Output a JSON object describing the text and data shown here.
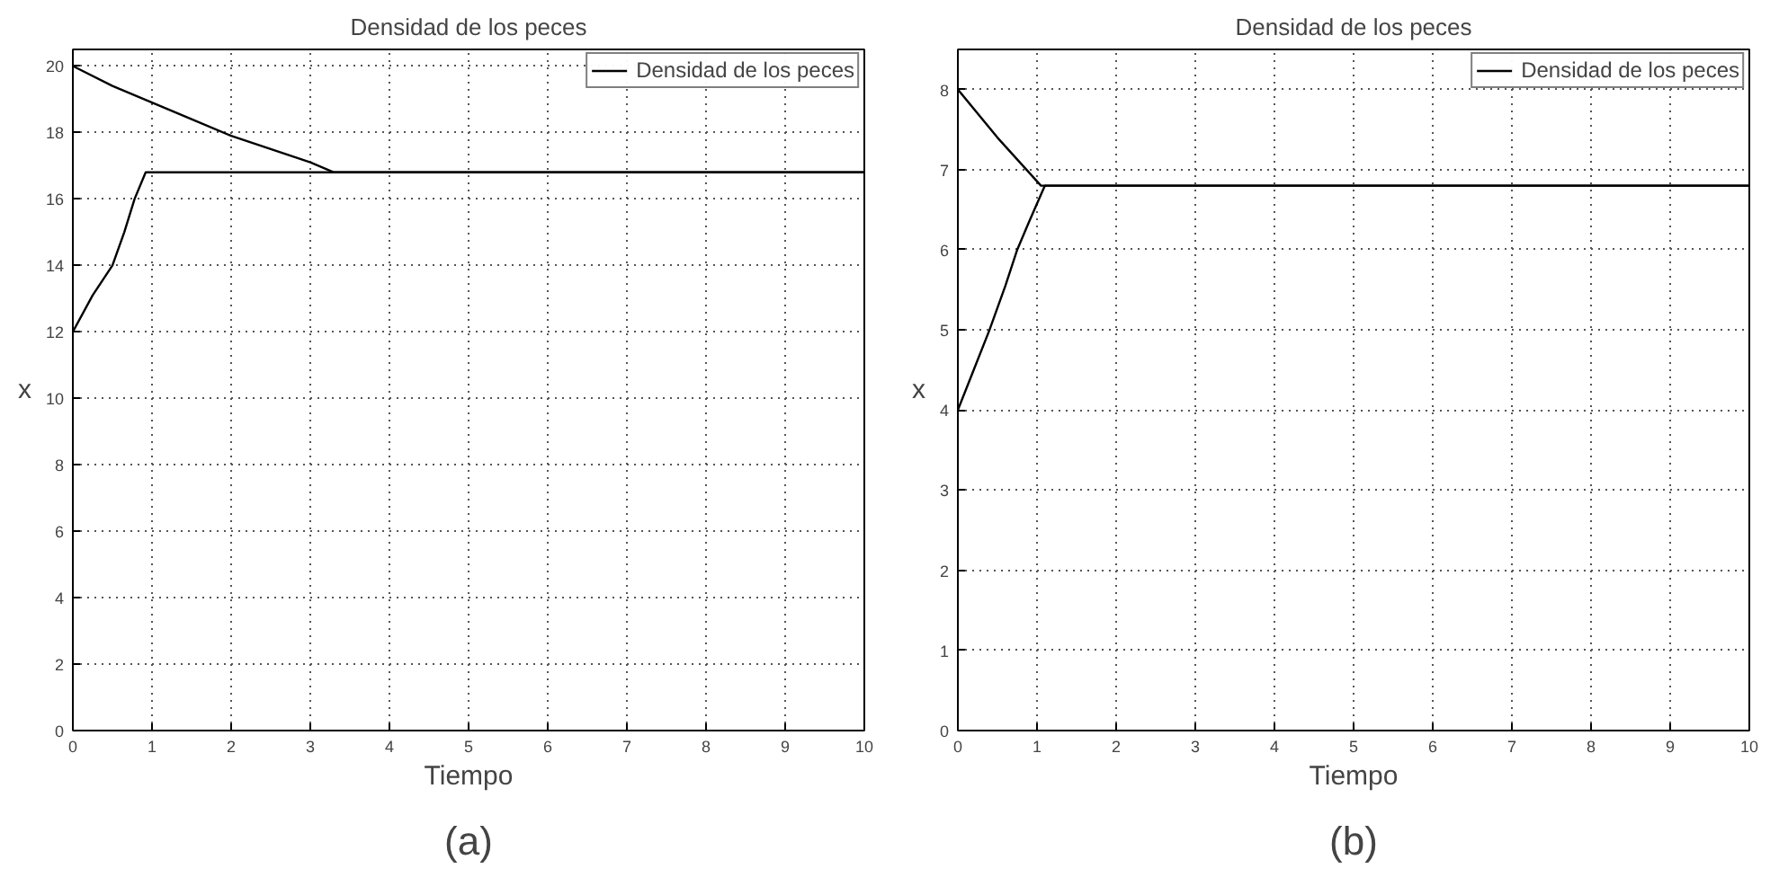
{
  "chart_data": [
    {
      "type": "line",
      "title": "Densidad de los peces",
      "xlabel": "Tiempo",
      "ylabel": "x",
      "annotations": [
        "(a)"
      ],
      "xlim": [
        0,
        10
      ],
      "ylim": [
        0,
        20.5
      ],
      "xticks": [
        0,
        1,
        2,
        3,
        4,
        5,
        6,
        7,
        8,
        9,
        10
      ],
      "yticks": [
        0,
        2,
        4,
        6,
        8,
        10,
        12,
        14,
        16,
        18,
        20
      ],
      "grid": true,
      "legend": "top right",
      "line_style": "solid",
      "series": [
        {
          "name": "Densidad de los peces",
          "color": "#000000",
          "x": [
            0,
            0.5,
            1,
            1.5,
            2,
            2.5,
            3,
            3.3,
            4,
            5,
            6,
            7,
            8,
            9,
            10
          ],
          "values": [
            20,
            19.4,
            18.9,
            18.4,
            17.9,
            17.5,
            17.1,
            16.8,
            16.8,
            16.8,
            16.8,
            16.8,
            16.8,
            16.8,
            16.8
          ]
        },
        {
          "color": "#000000",
          "x": [
            0,
            0.25,
            0.5,
            0.65,
            0.78,
            0.92,
            2,
            4,
            6,
            8,
            10
          ],
          "values": [
            12,
            13.1,
            14,
            15,
            16,
            16.8,
            16.8,
            16.8,
            16.8,
            16.8,
            16.8
          ]
        }
      ]
    },
    {
      "type": "line",
      "title": "Densidad de los peces",
      "xlabel": "Tiempo",
      "ylabel": "x",
      "annotations": [
        "(b)"
      ],
      "xlim": [
        0,
        10
      ],
      "ylim": [
        0,
        8.5
      ],
      "xticks": [
        0,
        1,
        2,
        3,
        4,
        5,
        6,
        7,
        8,
        9,
        10
      ],
      "yticks": [
        0,
        1,
        2,
        3,
        4,
        5,
        6,
        7,
        8
      ],
      "grid": true,
      "legend": "top right",
      "line_style": "solid",
      "series": [
        {
          "name": "Densidad de los peces",
          "color": "#000000",
          "x": [
            0,
            0.5,
            1.05,
            2,
            4,
            6,
            8,
            10
          ],
          "values": [
            8,
            7.4,
            6.8,
            6.8,
            6.8,
            6.8,
            6.8,
            6.8
          ]
        },
        {
          "color": "#000000",
          "x": [
            0,
            0.2,
            0.4,
            0.6,
            0.75,
            0.9,
            1.1,
            2,
            4,
            6,
            8,
            10
          ],
          "values": [
            4,
            4.5,
            5,
            5.55,
            6,
            6.35,
            6.8,
            6.8,
            6.8,
            6.8,
            6.8,
            6.8
          ]
        }
      ]
    }
  ]
}
